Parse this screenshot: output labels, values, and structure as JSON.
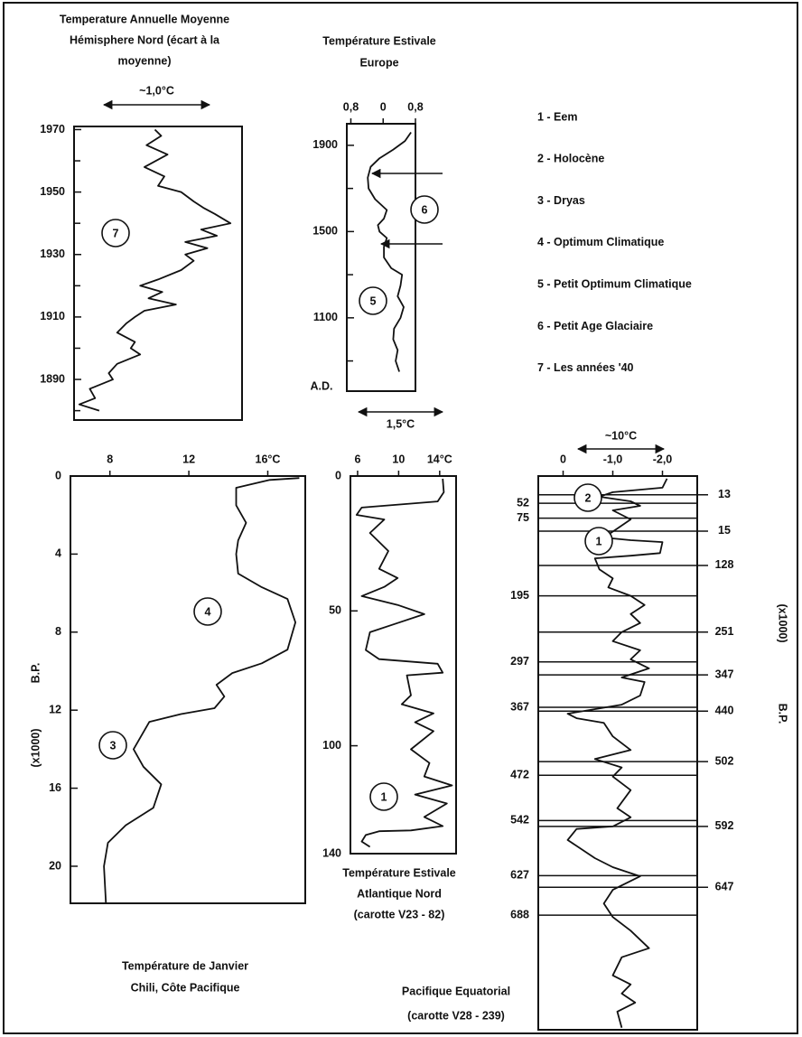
{
  "chart_data": [
    {
      "type": "line",
      "orientation": "vertical",
      "title": [
        "Temperature Annuelle Moyenne",
        "Hémisphere Nord (écart à la",
        "moyenne)"
      ],
      "scale_bar": "~1,0°C",
      "x": [
        1970,
        1968,
        1965,
        1962,
        1958,
        1955,
        1952,
        1950,
        1947,
        1945,
        1943,
        1940,
        1938,
        1936,
        1934,
        1932,
        1930,
        1928,
        1925,
        1922,
        1920,
        1918,
        1916,
        1914,
        1912,
        1910,
        1908,
        1905,
        1902,
        1900,
        1898,
        1895,
        1892,
        1890,
        1887,
        1884,
        1882,
        1880
      ],
      "values": [
        -0.03,
        0.03,
        -0.11,
        0.09,
        -0.13,
        0.06,
        0,
        0.22,
        0.34,
        0.43,
        0.54,
        0.69,
        0.41,
        0.56,
        0.26,
        0.47,
        0.26,
        0.34,
        0.22,
        0,
        -0.17,
        0.04,
        -0.09,
        0.17,
        -0.13,
        -0.22,
        -0.3,
        -0.39,
        -0.22,
        -0.26,
        -0.17,
        -0.39,
        -0.47,
        -0.43,
        -0.65,
        -0.6,
        -0.75,
        -0.56
      ],
      "xlim": [
        1971,
        1877
      ],
      "xticks": [
        1970,
        1950,
        1930,
        1910,
        1890
      ],
      "minor_xticks": [
        1960,
        1940,
        1920,
        1900,
        1880
      ],
      "ylim": [
        -0.8,
        0.8
      ],
      "annotations": [
        "7"
      ]
    },
    {
      "type": "line",
      "orientation": "vertical",
      "title": [
        "Température Estivale",
        "Europe"
      ],
      "scale_bar": "1,5°C",
      "axis_label": [
        "A.D."
      ],
      "x": [
        1960,
        1920,
        1880,
        1840,
        1800,
        1750,
        1700,
        1650,
        1600,
        1560,
        1530,
        1500,
        1470,
        1430,
        1380,
        1330,
        1300,
        1250,
        1200,
        1150,
        1100,
        1050,
        1000,
        950,
        900,
        850
      ],
      "values": [
        0.69,
        0.54,
        0.25,
        -0.09,
        -0.31,
        -0.38,
        -0.36,
        -0.2,
        0.09,
        0.02,
        -0.13,
        -0.09,
        0.09,
        0.02,
        0.02,
        0.2,
        0.47,
        0.43,
        0.36,
        0.51,
        0.43,
        0.27,
        0.25,
        0.36,
        0.31,
        0.4
      ],
      "xlim": [
        2000,
        760
      ],
      "xticks": [
        1900,
        1500,
        1100
      ],
      "minor_xticks": [
        1700,
        1300,
        900
      ],
      "ylim": [
        -0.9,
        0.8
      ],
      "yticks": [
        {
          "value": -0.8,
          "label": "0,8"
        },
        0,
        {
          "value": 0.8,
          "label": "0,8"
        }
      ],
      "annotations": [
        "6",
        "5"
      ]
    },
    {
      "type": "line",
      "orientation": "vertical",
      "title": [
        "Température de Janvier",
        "Chili, Côte Pacifique"
      ],
      "axis_label": [
        "B.P.",
        "(x1000)"
      ],
      "x": [
        0.1,
        0.2,
        0.6,
        1.5,
        2.4,
        3.3,
        4.0,
        5.0,
        5.7,
        6.3,
        7.5,
        8.9,
        9.6,
        10.1,
        10.7,
        11.3,
        11.9,
        12.2,
        12.6,
        14.0,
        14.9,
        15.8,
        17.0,
        17.9,
        18.8,
        20.0,
        21.9
      ],
      "values": [
        17.6,
        16.1,
        14.4,
        14.4,
        14.9,
        14.5,
        14.4,
        14.5,
        15.7,
        17.0,
        17.4,
        17.0,
        15.7,
        14.2,
        13.4,
        13.8,
        13.3,
        11.6,
        10.0,
        9.2,
        9.7,
        10.6,
        10.2,
        8.8,
        7.9,
        7.7,
        7.8
      ],
      "xlim": [
        0,
        21.9
      ],
      "xticks": [
        0,
        4,
        8,
        12,
        16,
        20
      ],
      "ylim": [
        6,
        17.9
      ],
      "yticks": [
        8,
        12,
        {
          "value": 16,
          "label": "16°C"
        }
      ],
      "annotations": [
        "4",
        "3"
      ]
    },
    {
      "type": "line",
      "orientation": "vertical",
      "title": [
        "Température Estivale",
        "Atlantique Nord",
        "(carotte V23 - 82)"
      ],
      "x": [
        1,
        6,
        9.4,
        11.7,
        14.4,
        16.1,
        21.1,
        27.8,
        34.4,
        37.8,
        41.1,
        44.5,
        47.8,
        51.2,
        54.5,
        57.9,
        64.5,
        67.9,
        69.6,
        72.9,
        73.9,
        81.3,
        84.6,
        88,
        91.3,
        94.6,
        101.3,
        106.4,
        111.4,
        114.7,
        118.1,
        121.4,
        126.4,
        129.8,
        131.4,
        131.7,
        133.1,
        135.5,
        137.5
      ],
      "values": [
        14.3,
        14.4,
        13.8,
        6.4,
        5.9,
        8.6,
        7.2,
        9.0,
        8.1,
        9.9,
        8.6,
        6.4,
        9.9,
        12.5,
        9.9,
        7.2,
        6.8,
        8.1,
        13.8,
        14.3,
        10.8,
        11.2,
        10.3,
        13.4,
        11.6,
        13.4,
        11.2,
        13.0,
        12.5,
        15.2,
        11.6,
        14.7,
        12.5,
        14.3,
        11.2,
        8.1,
        6.8,
        6.4,
        7.2
      ],
      "xlim": [
        0,
        140
      ],
      "xticks": [
        0,
        50,
        100,
        140
      ],
      "ylim": [
        5.3,
        15.6
      ],
      "yticks": [
        6,
        10,
        {
          "value": 14,
          "label": "14°C"
        }
      ],
      "annotations": [
        "1"
      ]
    },
    {
      "type": "line",
      "orientation": "vertical",
      "title": [
        "Pacifique Equatorial",
        "(carotte V28 - 239)"
      ],
      "scale_bar": "~10°C",
      "axis_label": [
        "(x1000)",
        "B.P."
      ],
      "x": [
        14,
        28,
        35,
        42,
        49,
        56,
        63,
        77,
        91,
        105,
        109,
        112,
        129,
        133,
        137,
        154,
        168,
        182,
        195,
        209,
        223,
        237,
        251,
        265,
        279,
        293,
        307,
        321,
        328,
        349,
        363,
        377,
        384,
        391,
        412,
        433,
        447,
        460,
        474,
        495,
        523,
        537,
        551,
        555,
        572,
        600,
        614,
        628,
        649,
        670,
        691,
        712,
        739,
        753,
        781,
        795,
        809,
        823,
        837,
        862
      ],
      "values": [
        -2.09,
        -2.0,
        -1.0,
        -0.73,
        -1.36,
        -1.55,
        -1.0,
        -1.36,
        -1.09,
        -0.82,
        -1.36,
        -2.0,
        -1.95,
        -1.36,
        -0.64,
        -0.73,
        -1.0,
        -0.91,
        -1.36,
        -1.64,
        -1.36,
        -1.55,
        -1.18,
        -1.0,
        -1.55,
        -1.36,
        -1.73,
        -1.18,
        -1.64,
        -1.55,
        -1.18,
        -0.09,
        -0.27,
        -0.82,
        -1.0,
        -1.36,
        -0.64,
        -1.18,
        -1.0,
        -1.36,
        -1.09,
        -1.36,
        -1.0,
        -0.27,
        -0.09,
        -0.64,
        -1.0,
        -1.55,
        -1.0,
        -0.82,
        -1.0,
        -1.36,
        -1.73,
        -1.18,
        -1.0,
        -1.36,
        -1.18,
        -1.45,
        -1.09,
        -1.18
      ],
      "xlim": [
        10,
        865
      ],
      "xticks": [
        52,
        75,
        195,
        297,
        367,
        472,
        542,
        627,
        688
      ],
      "grid": true,
      "ylim": [
        0.5,
        -2.7
      ],
      "yticks": [
        0,
        {
          "value": -1,
          "label": "-1,0"
        },
        {
          "value": -2,
          "label": "-2,0"
        }
      ],
      "boundaries": {
        "depths": [
          39,
          95,
          148,
          251,
          317,
          373,
          451,
          551,
          645
        ],
        "ages": [
          13,
          15,
          128,
          251,
          347,
          440,
          502,
          592,
          647
        ]
      },
      "annotations": [
        "2",
        "1"
      ]
    }
  ],
  "notes": [
    "1 - Eem",
    "2 - Holocène",
    "3 - Dryas",
    "4 - Optimum Climatique",
    "5 - Petit Optimum Climatique",
    "6 - Petit Age Glaciaire",
    "7 - Les années '40"
  ]
}
